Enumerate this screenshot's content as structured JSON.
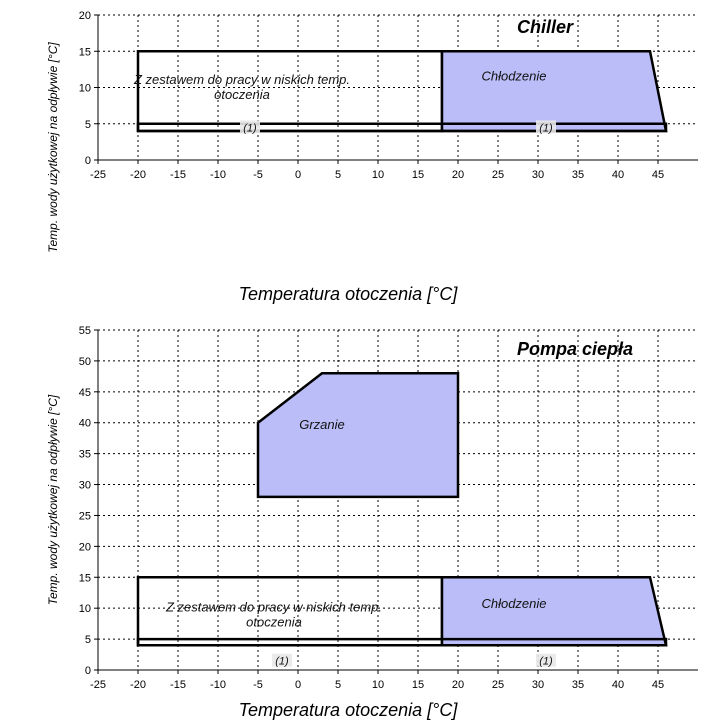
{
  "colors": {
    "fill": "#bbbdf8",
    "outline": "#000000",
    "note_bg": "#e8e8e8"
  },
  "chart_data": [
    {
      "type": "area",
      "title": "Chiller",
      "xlabel": "Temperatura otoczenia [°C]",
      "ylabel": "Temp. wody użytkowej na odpływie [°C]",
      "xlim": [
        -25,
        50
      ],
      "ylim": [
        0,
        20
      ],
      "xticks": [
        -25,
        -20,
        -15,
        -10,
        -5,
        0,
        5,
        10,
        15,
        20,
        25,
        30,
        35,
        40,
        45
      ],
      "yticks": [
        0,
        5,
        10,
        15,
        20
      ],
      "grid": true,
      "regions": [
        {
          "name": "Z zestawem do pracy w niskich temp. otoczenia",
          "label_lines": [
            "Z zestawem do pracy w niskich temp.",
            "otoczenia"
          ],
          "label_at": [
            -7,
            10.5
          ],
          "filled": false,
          "points": [
            [
              -20,
              4
            ],
            [
              18,
              4
            ],
            [
              18,
              15
            ],
            [
              -20,
              15
            ]
          ]
        },
        {
          "name": "Chłodzenie",
          "label_lines": [
            "Chłodzenie"
          ],
          "label_at": [
            27,
            11
          ],
          "filled": true,
          "points": [
            [
              18,
              4
            ],
            [
              46,
              4
            ],
            [
              44,
              15
            ],
            [
              18,
              15
            ]
          ]
        },
        {
          "name": "band",
          "label_lines": [],
          "filled": false,
          "points": [
            [
              -20,
              4
            ],
            [
              46,
              4
            ],
            [
              46,
              5
            ],
            [
              -20,
              5
            ]
          ]
        }
      ],
      "notes": [
        {
          "text": "(1)",
          "at": [
            -6,
            4.5
          ]
        },
        {
          "text": "(1)",
          "at": [
            31,
            4.5
          ]
        }
      ]
    },
    {
      "type": "area",
      "title": "Pompa ciepła",
      "xlabel": "Temperatura otoczenia [°C]",
      "ylabel": "Temp. wody użytkowej na odpływie [°C]",
      "xlim": [
        -25,
        50
      ],
      "ylim": [
        0,
        55
      ],
      "xticks": [
        -25,
        -20,
        -15,
        -10,
        -5,
        0,
        5,
        10,
        15,
        20,
        25,
        30,
        35,
        40,
        45
      ],
      "yticks": [
        0,
        5,
        10,
        15,
        20,
        25,
        30,
        35,
        40,
        45,
        50,
        55
      ],
      "grid": true,
      "regions": [
        {
          "name": "Grzanie",
          "label_lines": [
            "Grzanie"
          ],
          "label_at": [
            3,
            39
          ],
          "filled": true,
          "points": [
            [
              -5,
              28
            ],
            [
              20,
              28
            ],
            [
              20,
              48
            ],
            [
              3,
              48
            ],
            [
              -5,
              40
            ]
          ]
        },
        {
          "name": "Z zestawem do pracy w niskich temp. otoczenia",
          "label_lines": [
            "Z zestawem do pracy w niskich temp.",
            "otoczenia"
          ],
          "label_at": [
            -3,
            9.5
          ],
          "filled": false,
          "points": [
            [
              -20,
              4
            ],
            [
              18,
              4
            ],
            [
              18,
              15
            ],
            [
              -20,
              15
            ]
          ]
        },
        {
          "name": "Chłodzenie",
          "label_lines": [
            "Chłodzenie"
          ],
          "label_at": [
            27,
            10
          ],
          "filled": true,
          "points": [
            [
              18,
              4
            ],
            [
              46,
              4
            ],
            [
              44,
              15
            ],
            [
              18,
              15
            ]
          ]
        },
        {
          "name": "band",
          "label_lines": [],
          "filled": false,
          "points": [
            [
              -20,
              4
            ],
            [
              46,
              4
            ],
            [
              46,
              5
            ],
            [
              -20,
              5
            ]
          ]
        }
      ],
      "notes": [
        {
          "text": "(1)",
          "at": [
            -2,
            1.5
          ]
        },
        {
          "text": "(1)",
          "at": [
            31,
            1.5
          ]
        }
      ]
    }
  ]
}
